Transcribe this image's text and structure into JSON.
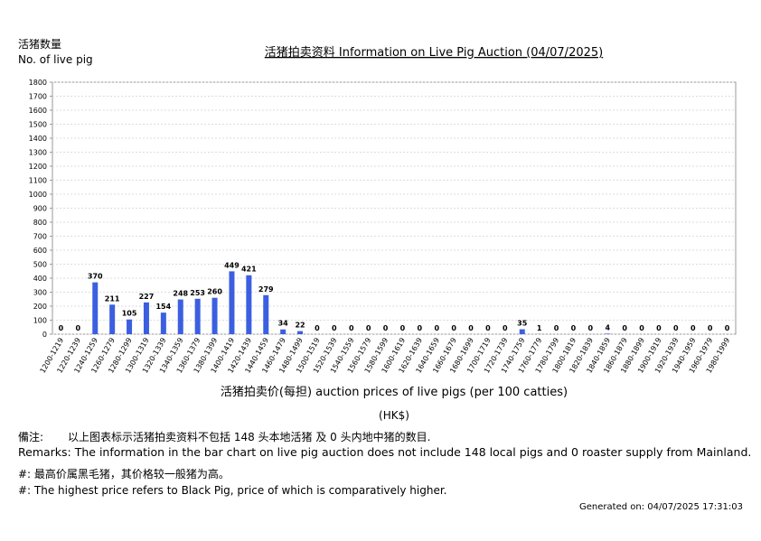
{
  "chart_data": {
    "type": "bar",
    "title": "活猪拍卖资料 Information on Live Pig Auction (04/07/2025)",
    "y_label_cn": "活猪数量",
    "y_label_en": "No. of live pig",
    "x_label": "活猪拍卖价(每担) auction prices of live pigs (per 100 catties)",
    "x_unit": "(HK$)",
    "color": "#3b5fe0",
    "categories": [
      "1200-1219",
      "1220-1239",
      "1240-1259",
      "1260-1279",
      "1280-1299",
      "1300-1319",
      "1320-1339",
      "1340-1359",
      "1360-1379",
      "1380-1399",
      "1400-1419",
      "1420-1439",
      "1440-1459",
      "1460-1479",
      "1480-1499",
      "1500-1519",
      "1520-1539",
      "1540-1559",
      "1560-1579",
      "1580-1599",
      "1600-1619",
      "1620-1639",
      "1640-1659",
      "1660-1679",
      "1680-1699",
      "1700-1719",
      "1720-1739",
      "1740-1759",
      "1760-1779",
      "1780-1799",
      "1800-1819",
      "1820-1839",
      "1840-1859",
      "1860-1879",
      "1880-1899",
      "1900-1919",
      "1920-1939",
      "1940-1959",
      "1960-1979",
      "1980-1999"
    ],
    "values": [
      0,
      0,
      370,
      211,
      105,
      227,
      154,
      248,
      253,
      260,
      449,
      421,
      279,
      34,
      22,
      0,
      0,
      0,
      0,
      0,
      0,
      0,
      0,
      0,
      0,
      0,
      0,
      35,
      1,
      0,
      0,
      0,
      4,
      0,
      0,
      0,
      0,
      0,
      0,
      0
    ],
    "ylim": [
      0,
      1800
    ],
    "yticks": [
      0,
      100,
      200,
      300,
      400,
      500,
      600,
      700,
      800,
      900,
      1000,
      1100,
      1200,
      1300,
      1400,
      1500,
      1600,
      1700,
      1800
    ],
    "grid": true
  },
  "remarks": {
    "label_cn": "備注:",
    "text_cn": "以上图表标示活猪拍卖资料不包括 148 头本地活猪 及 0 头内地中猪的数目.",
    "text_en": "Remarks: The information in the bar chart on live pig auction does not include 148 local pigs and 0 roaster supply from Mainland.",
    "note_cn": "#: 最高价属黑毛猪，其价格较一般猪为高。",
    "note_en": "#: The highest price refers to Black Pig, price of which is comparatively higher.",
    "generated": "Generated on: 04/07/2025 17:31:03"
  }
}
